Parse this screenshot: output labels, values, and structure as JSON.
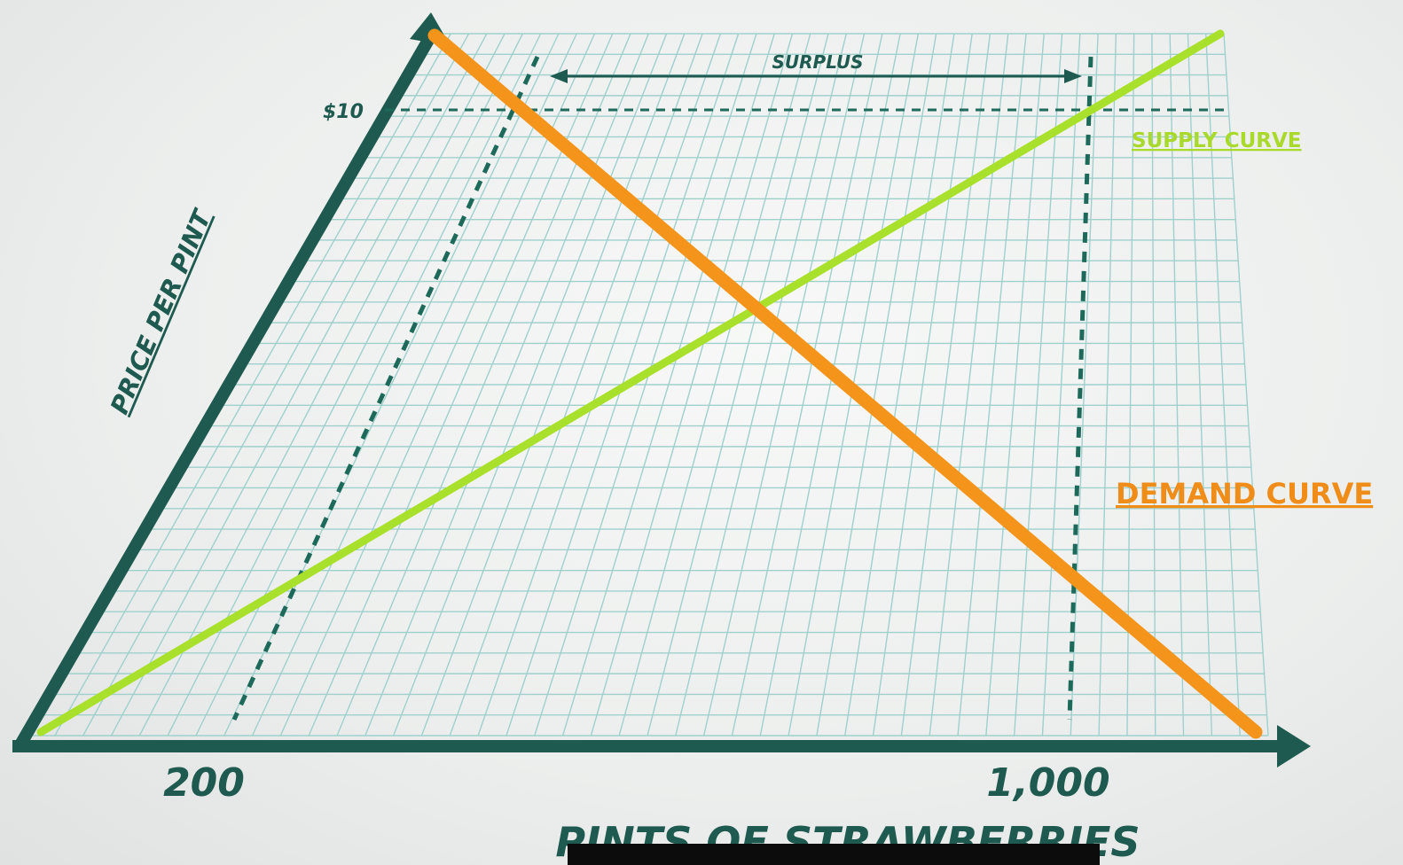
{
  "chart_data": {
    "type": "line",
    "xlabel": "PINTS OF STRAWBERRIES",
    "ylabel": "PRICE PER PINT",
    "x_tick_labels": [
      "200",
      "1,000"
    ],
    "y_tick_labels": [
      "$10"
    ],
    "series": [
      {
        "name": "SUPPLY CURVE",
        "color": "#a9d92a"
      },
      {
        "name": "DEMAND CURVE",
        "color": "#f08c18"
      }
    ],
    "annotations": [
      {
        "text": "SURPLUS",
        "type": "double-arrow",
        "from_x": 200,
        "to_x": 1000,
        "at_y": 10
      }
    ],
    "reference_lines": [
      {
        "type": "horizontal",
        "y": 10,
        "style": "dashed"
      },
      {
        "type": "vertical",
        "x": 200,
        "style": "dashed"
      },
      {
        "type": "vertical",
        "x": 1000,
        "style": "dashed"
      }
    ],
    "grid": true,
    "axis_color": "#1e5a4f"
  }
}
